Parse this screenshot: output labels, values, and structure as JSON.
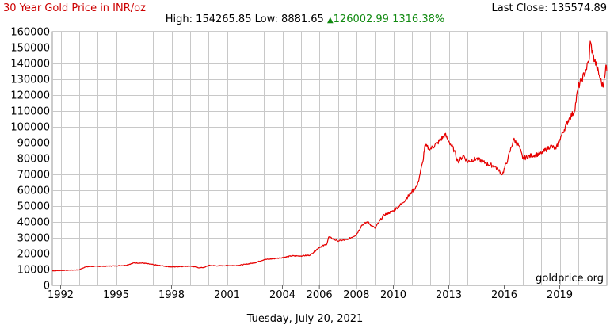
{
  "header": {
    "title": "30 Year Gold Price in INR/oz",
    "last_close_label": "Last Close:",
    "last_close_value": "135574.89",
    "high_label": "High:",
    "high_value": "154265.85",
    "low_label": "Low:",
    "low_value": "8881.65",
    "change_value": "126002.99",
    "change_pct": "1316.38%"
  },
  "footer": {
    "date": "Tuesday, July 20, 2021",
    "watermark": "goldprice.org"
  },
  "colors": {
    "line": "#e60000",
    "grid": "#c8c8c8",
    "title": "#cc0000",
    "up": "#118a11"
  },
  "chart_data": {
    "type": "line",
    "title": "30 Year Gold Price in INR/oz",
    "xlabel": "",
    "ylabel": "",
    "xlim": [
      1991.55,
      2021.55
    ],
    "ylim": [
      0,
      160000
    ],
    "x_ticks": [
      1992,
      1995,
      1998,
      2001,
      2004,
      2006,
      2008,
      2010,
      2013,
      2016,
      2019
    ],
    "x_tick_labels": [
      "1992",
      "1995",
      "1998",
      "2001",
      "2004",
      "2006",
      "2008",
      "2010",
      "2013",
      "2016",
      "2019"
    ],
    "y_ticks": [
      0,
      10000,
      20000,
      30000,
      40000,
      50000,
      60000,
      70000,
      80000,
      90000,
      100000,
      110000,
      120000,
      130000,
      140000,
      150000,
      160000
    ],
    "grid": true,
    "legend": "none",
    "series": [
      {
        "x": [
          1991.55,
          1992.0,
          1992.5,
          1993.0,
          1993.3,
          1993.6,
          1994.0,
          1994.5,
          1995.0,
          1995.5,
          1996.0,
          1996.5,
          1997.0,
          1997.5,
          1998.0,
          1998.5,
          1999.0,
          1999.5,
          1999.8,
          2000.0,
          2000.5,
          2001.0,
          2001.5,
          2002.0,
          2002.5,
          2003.0,
          2003.5,
          2004.0,
          2004.5,
          2005.0,
          2005.5,
          2006.0,
          2006.4,
          2006.5,
          2007.0,
          2007.5,
          2008.0,
          2008.3,
          2008.6,
          2009.0,
          2009.5,
          2010.0,
          2010.5,
          2011.0,
          2011.3,
          2011.6,
          2011.7,
          2012.0,
          2012.4,
          2012.8,
          2013.0,
          2013.3,
          2013.5,
          2013.8,
          2014.0,
          2014.5,
          2015.0,
          2015.5,
          2015.9,
          2016.2,
          2016.5,
          2016.8,
          2017.0,
          2017.5,
          2018.0,
          2018.5,
          2018.8,
          2019.0,
          2019.5,
          2019.8,
          2020.0,
          2020.2,
          2020.4,
          2020.6,
          2020.65,
          2020.8,
          2021.0,
          2021.2,
          2021.35,
          2021.5,
          2021.55
        ],
        "values": [
          9200,
          9400,
          9600,
          9800,
          11500,
          11900,
          12000,
          12100,
          12300,
          12600,
          14200,
          14000,
          13100,
          12300,
          11600,
          11900,
          12200,
          11100,
          11400,
          12600,
          12300,
          12500,
          12500,
          13300,
          14200,
          16200,
          16800,
          17500,
          18600,
          18500,
          19100,
          24000,
          26000,
          30500,
          28000,
          28800,
          32000,
          38000,
          40000,
          36000,
          44500,
          47000,
          52000,
          59000,
          63000,
          78000,
          88000,
          86000,
          90000,
          95000,
          91000,
          85000,
          78000,
          82000,
          78000,
          80000,
          77000,
          75000,
          70000,
          80000,
          92000,
          88000,
          80000,
          82000,
          83000,
          88000,
          86000,
          92000,
          105000,
          110000,
          125000,
          130000,
          135000,
          143000,
          154000,
          145000,
          138000,
          130000,
          125000,
          139000,
          135000
        ]
      }
    ]
  }
}
